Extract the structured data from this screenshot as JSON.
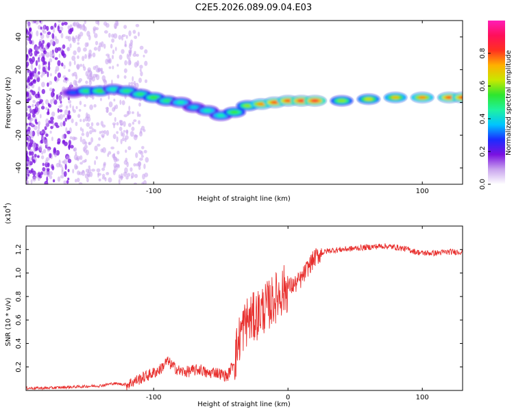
{
  "title": "C2E5.2026.089.09.04.E03",
  "chart_data": [
    {
      "type": "heatmap",
      "name": "spectrogram",
      "xlabel": "Height of straight line (km)",
      "ylabel": "Frequency (Hz)",
      "xlim": [
        -195,
        130
      ],
      "ylim": [
        -50,
        50
      ],
      "x_ticks": [
        -100,
        100
      ],
      "y_ticks": [
        -40,
        -20,
        0,
        20,
        40
      ],
      "ridge": {
        "x": [
          -160,
          -150,
          -140,
          -130,
          -120,
          -110,
          -100,
          -90,
          -80,
          -70,
          -60,
          -50,
          -40,
          -30,
          -20,
          -10,
          0,
          10,
          20,
          40,
          60,
          80,
          100,
          120,
          130
        ],
        "freq": [
          6,
          7,
          7,
          8,
          7,
          5,
          3,
          1,
          0,
          -3,
          -5,
          -8,
          -6,
          -2,
          -1,
          0,
          1,
          1,
          1,
          1,
          2,
          3,
          3,
          3,
          3
        ],
        "amplitude": [
          0.3,
          0.5,
          0.55,
          0.45,
          0.5,
          0.5,
          0.55,
          0.5,
          0.45,
          0.4,
          0.45,
          0.45,
          0.55,
          0.6,
          0.75,
          0.8,
          0.8,
          0.85,
          0.85,
          0.6,
          0.65,
          0.7,
          0.75,
          0.8,
          0.8
        ]
      }
    },
    {
      "type": "colorbar",
      "name": "amplitude-colorbar",
      "label": "Normalized spectral amplitude",
      "range": [
        0,
        1
      ],
      "ticks": [
        "0.0",
        "0.2",
        "0.4",
        "0.6",
        "0.8"
      ],
      "tick_values": [
        0,
        0.2,
        0.4,
        0.6,
        0.8
      ],
      "stops": [
        "#ffffff",
        "#c9a4ee",
        "#7a11e0",
        "#1b2cff",
        "#00c4ff",
        "#1ef2a0",
        "#2ee62e",
        "#c8e800",
        "#ffb000",
        "#ff3020",
        "#ff0f5a",
        "#ff1db7"
      ]
    },
    {
      "type": "line",
      "name": "snr",
      "xlabel": "Height of straight line (km)",
      "ylabel": "SNR (10 * v/v)",
      "y_multiplier": "(x10",
      "y_multiplier_exp": "4",
      "y_multiplier_close": ")",
      "xlim": [
        -195,
        130
      ],
      "ylim": [
        0,
        1.4
      ],
      "x_ticks": [
        -100,
        0,
        100
      ],
      "y_ticks": [
        0.2,
        0.4,
        0.6,
        0.8,
        1.0,
        1.2
      ],
      "y_tick_labels": [
        "0.2",
        "0.4",
        "0.6",
        "0.8",
        "1.0",
        "1.2"
      ],
      "color": "#e8302e",
      "x": [
        -195,
        -180,
        -160,
        -140,
        -130,
        -120,
        -110,
        -100,
        -95,
        -90,
        -85,
        -80,
        -75,
        -70,
        -65,
        -60,
        -55,
        -50,
        -45,
        -40,
        -35,
        -30,
        -25,
        -20,
        -15,
        -10,
        -5,
        0,
        5,
        10,
        15,
        20,
        25,
        30,
        40,
        50,
        60,
        70,
        80,
        90,
        95,
        100,
        110,
        120,
        130
      ],
      "y": [
        0.02,
        0.02,
        0.03,
        0.04,
        0.06,
        0.05,
        0.1,
        0.15,
        0.18,
        0.25,
        0.2,
        0.16,
        0.16,
        0.17,
        0.18,
        0.14,
        0.16,
        0.14,
        0.12,
        0.25,
        0.5,
        0.6,
        0.62,
        0.68,
        0.72,
        0.78,
        0.84,
        0.88,
        0.9,
        0.95,
        1.05,
        1.13,
        1.17,
        1.19,
        1.2,
        1.21,
        1.22,
        1.23,
        1.22,
        1.2,
        1.18,
        1.17,
        1.17,
        1.18,
        1.18
      ]
    }
  ]
}
